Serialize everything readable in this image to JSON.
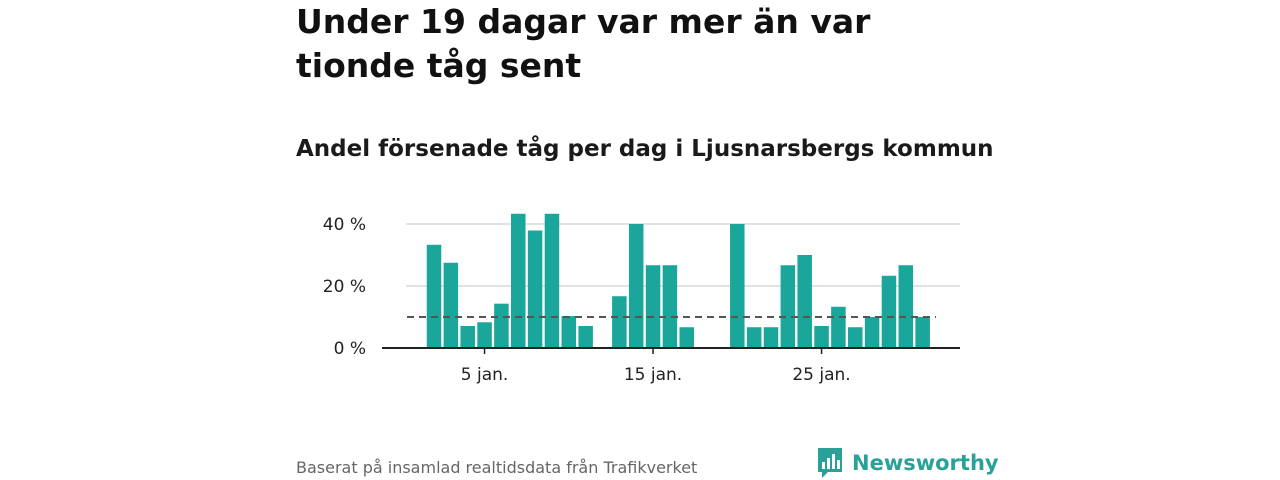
{
  "chart_data": {
    "type": "bar",
    "title": "Under 19 dagar var mer än var tionde tåg sent",
    "subtitle": "Andel försenade tåg per dag i Ljusnarsbergs kommun",
    "y_ticks": [
      "0 %",
      "20 %",
      "40 %"
    ],
    "ylim": [
      0,
      45
    ],
    "x_ticks": [
      {
        "day": 5,
        "label": "5 jan."
      },
      {
        "day": 15,
        "label": "15 jan."
      },
      {
        "day": 25,
        "label": "25 jan."
      }
    ],
    "xlim": [
      1,
      31
    ],
    "reference_line": 10,
    "bar_color": "#1aa69a",
    "reference_line_color": "#555555",
    "data": [
      {
        "day": 2,
        "value": 33.3
      },
      {
        "day": 3,
        "value": 27.5
      },
      {
        "day": 4,
        "value": 7.1
      },
      {
        "day": 5,
        "value": 8.3
      },
      {
        "day": 6,
        "value": 14.3
      },
      {
        "day": 7,
        "value": 43.3
      },
      {
        "day": 8,
        "value": 37.9
      },
      {
        "day": 9,
        "value": 43.3
      },
      {
        "day": 10,
        "value": 10.3
      },
      {
        "day": 11,
        "value": 7.1
      },
      {
        "day": 13,
        "value": 16.7
      },
      {
        "day": 14,
        "value": 40.0
      },
      {
        "day": 15,
        "value": 26.7
      },
      {
        "day": 16,
        "value": 26.7
      },
      {
        "day": 17,
        "value": 6.7
      },
      {
        "day": 20,
        "value": 40.0
      },
      {
        "day": 21,
        "value": 6.7
      },
      {
        "day": 22,
        "value": 6.7
      },
      {
        "day": 23,
        "value": 26.7
      },
      {
        "day": 24,
        "value": 30.0
      },
      {
        "day": 25,
        "value": 7.1
      },
      {
        "day": 26,
        "value": 13.3
      },
      {
        "day": 27,
        "value": 6.7
      },
      {
        "day": 28,
        "value": 10.0
      },
      {
        "day": 29,
        "value": 23.3
      },
      {
        "day": 30,
        "value": 26.7
      },
      {
        "day": 31,
        "value": 10.0
      }
    ]
  },
  "footer": {
    "source": "Baserat på insamlad realtidsdata från Trafikverket",
    "brand": "Newsworthy",
    "brand_color": "#2aa198",
    "brand_icon": "bar-chart-speech-bubble-icon"
  }
}
